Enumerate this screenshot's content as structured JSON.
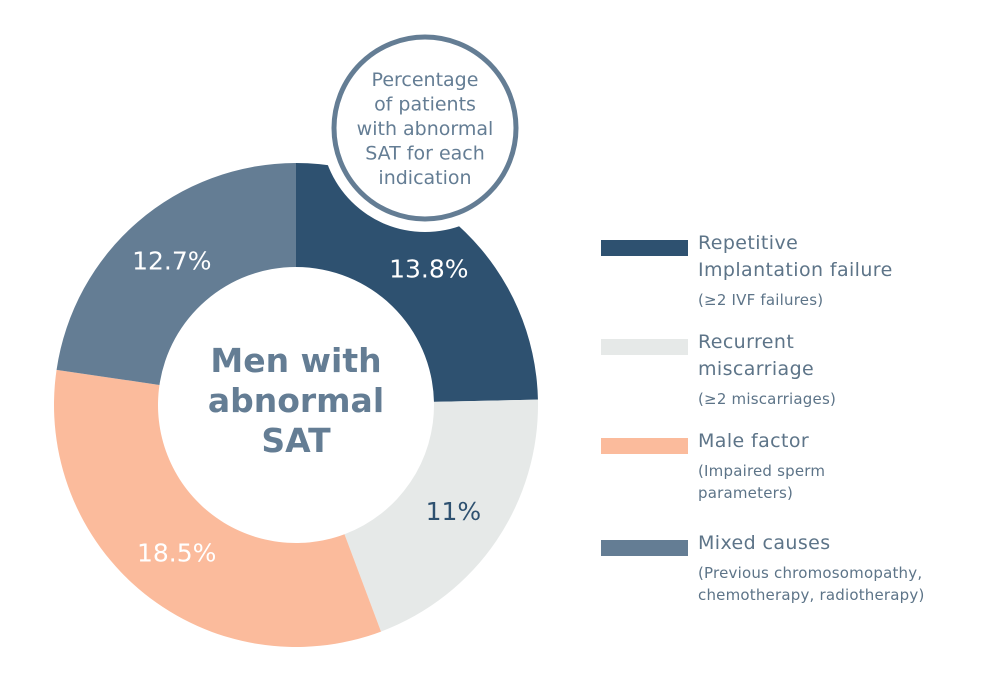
{
  "chart_data": {
    "type": "pie",
    "title": "Men with abnormal SAT",
    "callout": "Percentage of patients with abnormal SAT for each indication",
    "callout_lines": [
      "Percentage",
      "of patients",
      "with abnormal",
      "SAT for each",
      "indication"
    ],
    "center_lines": [
      "Men with",
      "abnormal",
      "SAT"
    ],
    "donut": true,
    "slices": [
      {
        "label": "Repetitive Implantation failure",
        "value": 13.8,
        "display": "13.8%",
        "color": "#2e5170",
        "label_color": "#ffffff"
      },
      {
        "label": "Recurrent miscarriage",
        "value": 11,
        "display": "11%",
        "color": "#e6e9e8",
        "label_color": "#2e5170"
      },
      {
        "label": "Male factor",
        "value": 18.5,
        "display": "18.5%",
        "color": "#fbbb9c",
        "label_color": "#ffffff"
      },
      {
        "label": "Mixed causes",
        "value": 12.7,
        "display": "12.7%",
        "color": "#647d94",
        "label_color": "#ffffff"
      }
    ]
  },
  "legend": {
    "items": [
      {
        "title_lines": [
          "Repetitive",
          "Implantation failure"
        ],
        "subtitle_lines": [
          "(≥2 IVF failures)"
        ],
        "color": "#2e5170"
      },
      {
        "title_lines": [
          "Recurrent",
          "miscarriage"
        ],
        "subtitle_lines": [
          "(≥2 miscarriages)"
        ],
        "color": "#e6e9e8"
      },
      {
        "title_lines": [
          "Male factor"
        ],
        "subtitle_lines": [
          "(Impaired sperm",
          "parameters)"
        ],
        "color": "#fbbb9c"
      },
      {
        "title_lines": [
          "Mixed causes"
        ],
        "subtitle_lines": [
          "(Previous chromosomopathy,",
          "chemotherapy, radiotherapy)"
        ],
        "color": "#647d94"
      }
    ]
  }
}
